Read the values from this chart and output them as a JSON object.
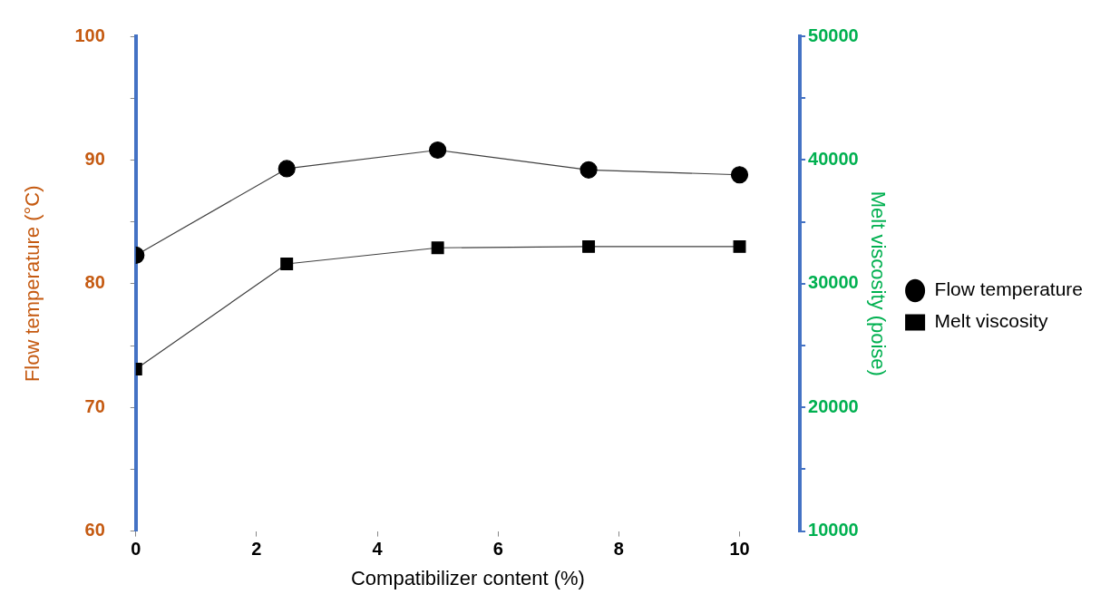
{
  "chart_data": {
    "type": "line",
    "xlabel": "Compatibilizer content (%)",
    "ylabel": "Flow temperature (°C)",
    "y2label": "Melt viscosity (poise)",
    "x": [
      0,
      2.5,
      5,
      7.5,
      10
    ],
    "xlim": [
      0,
      11
    ],
    "xticks": [
      0,
      2,
      4,
      6,
      8,
      10
    ],
    "ylim": [
      60,
      100
    ],
    "yticks": [
      60,
      {
        "value": 65,
        "label": null
      },
      70,
      {
        "value": 75,
        "label": null
      },
      80,
      {
        "value": 85,
        "label": null
      },
      90,
      {
        "value": 95,
        "label": null
      },
      100
    ],
    "y2lim": [
      10000,
      50000
    ],
    "y2ticks": [
      10000,
      {
        "value": 15000,
        "label": null
      },
      20000,
      {
        "value": 25000,
        "label": null
      },
      30000,
      {
        "value": 35000,
        "label": null
      },
      40000,
      {
        "value": 45000,
        "label": null
      },
      50000
    ],
    "series": [
      {
        "name": "Flow temperature",
        "color": "#000000",
        "marker": "circle",
        "values": [
          82.3,
          89.3,
          90.8,
          89.2,
          88.8
        ]
      },
      {
        "name": "Melt viscosity",
        "color": "#000000",
        "marker": "square",
        "axis": "y2",
        "values": [
          23100,
          31600,
          32900,
          33000,
          33000
        ]
      }
    ],
    "grid": false,
    "legend": "right",
    "line_style": "solid"
  }
}
